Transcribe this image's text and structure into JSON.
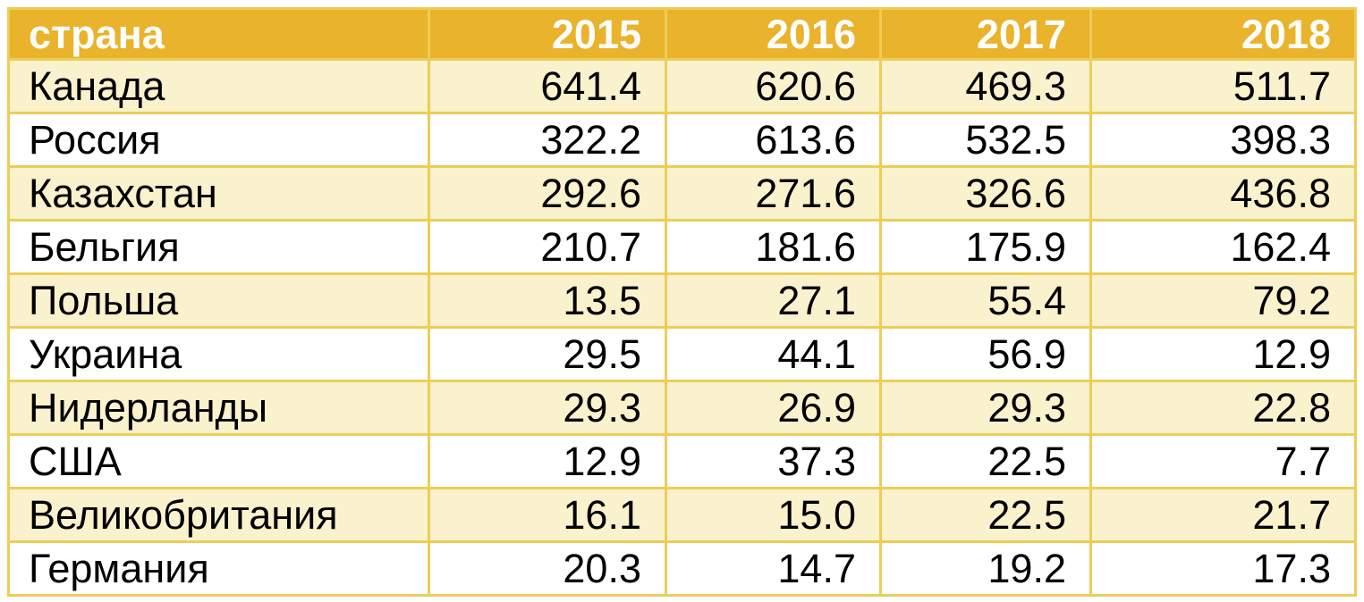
{
  "table": {
    "header": {
      "country_label": "страна",
      "years": [
        "2015",
        "2016",
        "2017",
        "2018"
      ]
    },
    "rows": [
      {
        "country": "Канада",
        "values": [
          "641.4",
          "620.6",
          "469.3",
          "511.7"
        ]
      },
      {
        "country": "Россия",
        "values": [
          "322.2",
          "613.6",
          "532.5",
          "398.3"
        ]
      },
      {
        "country": "Казахстан",
        "values": [
          "292.6",
          "271.6",
          "326.6",
          "436.8"
        ]
      },
      {
        "country": "Бельгия",
        "values": [
          "210.7",
          "181.6",
          "175.9",
          "162.4"
        ]
      },
      {
        "country": "Польша",
        "values": [
          "13.5",
          "27.1",
          "55.4",
          "79.2"
        ]
      },
      {
        "country": "Украина",
        "values": [
          "29.5",
          "44.1",
          "56.9",
          "12.9"
        ]
      },
      {
        "country": "Нидерланды",
        "values": [
          "29.3",
          "26.9",
          "29.3",
          "22.8"
        ]
      },
      {
        "country": "США",
        "values": [
          "12.9",
          "37.3",
          "22.5",
          "7.7"
        ]
      },
      {
        "country": "Великобритания",
        "values": [
          "16.1",
          "15.0",
          "22.5",
          "21.7"
        ]
      },
      {
        "country": "Германия",
        "values": [
          "20.3",
          "14.7",
          "19.2",
          "17.3"
        ]
      }
    ]
  },
  "colors": {
    "header_bg": "#E9B32B",
    "header_text": "#FFFFFF",
    "row_alt_bg": "#FAF1CD",
    "row_bg": "#FFFFFF",
    "grid_line": "#EECD57",
    "body_text": "#000000"
  },
  "chart_data": {
    "type": "table",
    "title": "",
    "columns": [
      "страна",
      "2015",
      "2016",
      "2017",
      "2018"
    ],
    "categories": [
      "Канада",
      "Россия",
      "Казахстан",
      "Бельгия",
      "Польша",
      "Украина",
      "Нидерланды",
      "США",
      "Великобритания",
      "Германия"
    ],
    "series": [
      {
        "name": "2015",
        "values": [
          641.4,
          322.2,
          292.6,
          210.7,
          13.5,
          29.5,
          29.3,
          12.9,
          16.1,
          20.3
        ]
      },
      {
        "name": "2016",
        "values": [
          620.6,
          613.6,
          271.6,
          181.6,
          27.1,
          44.1,
          26.9,
          37.3,
          15.0,
          14.7
        ]
      },
      {
        "name": "2017",
        "values": [
          469.3,
          532.5,
          326.6,
          175.9,
          55.4,
          56.9,
          29.3,
          22.5,
          22.5,
          19.2
        ]
      },
      {
        "name": "2018",
        "values": [
          511.7,
          398.3,
          436.8,
          162.4,
          79.2,
          12.9,
          22.8,
          7.7,
          21.7,
          17.3
        ]
      }
    ]
  }
}
